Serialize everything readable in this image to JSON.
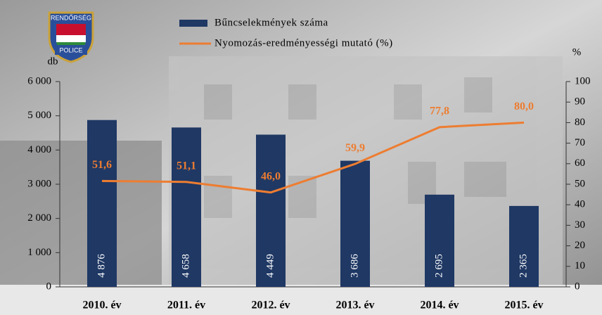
{
  "logo": {
    "top": "RENDŐRSÉG",
    "bottom": "POLICE"
  },
  "chart_data": {
    "type": "bar",
    "categories": [
      "2010. év",
      "2011. év",
      "2012. év",
      "2013. év",
      "2014. év",
      "2015. év"
    ],
    "series": [
      {
        "name": "Bűncselekmények száma",
        "type": "bar",
        "color": "#1f3864",
        "axis": "y",
        "values": [
          4876,
          4658,
          4449,
          3686,
          2695,
          2365
        ],
        "value_labels": [
          "4 876",
          "4 658",
          "4 449",
          "3 686",
          "2 695",
          "2 365"
        ]
      },
      {
        "name": "Nyomozás-eredményességi mutató (%)",
        "type": "line",
        "color": "#ed7d31",
        "axis": "y2",
        "values": [
          51.6,
          51.1,
          46.0,
          59.9,
          77.8,
          80.0
        ],
        "value_labels": [
          "51,6",
          "51,1",
          "46,0",
          "59,9",
          "77,8",
          "80,0"
        ]
      }
    ],
    "ylabel": "db",
    "y2label": "%",
    "ylim": [
      0,
      6000
    ],
    "yticks": [
      0,
      {
        "value": 1000,
        "label": "1 000"
      },
      {
        "value": 2000,
        "label": "2 000"
      },
      {
        "value": 3000,
        "label": "3 000"
      },
      {
        "value": 4000,
        "label": "4 000"
      },
      {
        "value": 5000,
        "label": "5 000"
      },
      {
        "value": 6000,
        "label": "6 000"
      }
    ],
    "y2lim": [
      0,
      100
    ],
    "y2ticks": [
      0,
      10,
      20,
      30,
      40,
      50,
      60,
      70,
      80,
      90,
      100
    ],
    "legend": "top"
  }
}
